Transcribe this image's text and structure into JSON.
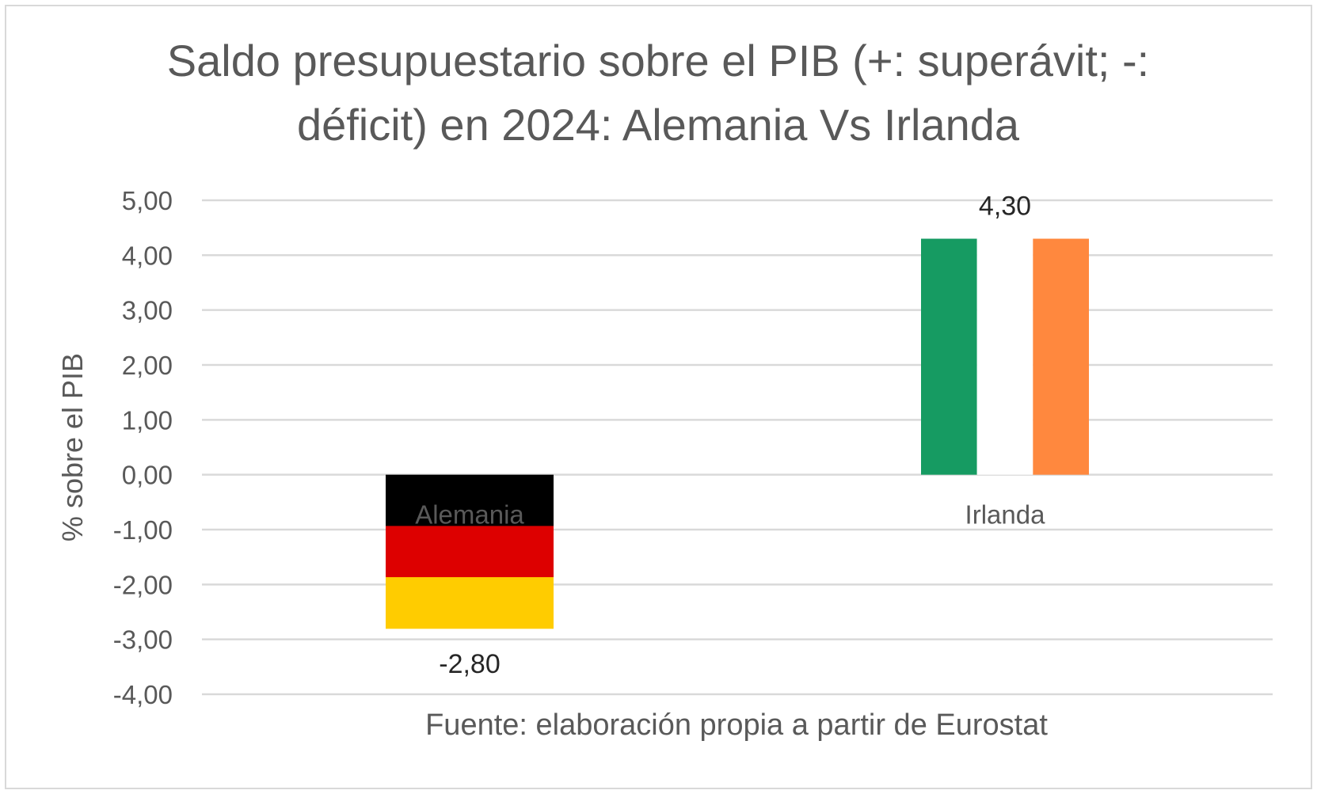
{
  "chart_data": {
    "type": "bar",
    "title_lines": [
      "Saldo presupuestario sobre el PIB (+: superávit; -:",
      "déficit) en 2024: Alemania Vs Irlanda"
    ],
    "xlabel": "Fuente: elaboración propia a partir de Eurostat",
    "ylabel": "% sobre el PIB",
    "categories": [
      "Alemania",
      "Irlanda"
    ],
    "values": [
      -2.8,
      4.3
    ],
    "data_labels": [
      "-2,80",
      "4,30"
    ],
    "ylim": [
      -4,
      5
    ],
    "yticks": [
      5,
      4,
      3,
      2,
      1,
      0,
      -1,
      -2,
      -3,
      -4
    ],
    "ytick_labels": [
      "5,00",
      "4,00",
      "3,00",
      "2,00",
      "1,00",
      "0,00",
      "-1,00",
      "-2,00",
      "-3,00",
      "-4,00"
    ],
    "grid": true,
    "legend": "none",
    "bar_styles": [
      {
        "pattern": "horizontal-flag",
        "stripes": [
          "#000000",
          "#dd0000",
          "#ffcc00"
        ]
      },
      {
        "pattern": "vertical-flag",
        "stripes": [
          "#169b62",
          "#ffffff",
          "#ff883e"
        ]
      }
    ],
    "gridline_color": "#d9d9d9",
    "text_color": "#595959"
  }
}
